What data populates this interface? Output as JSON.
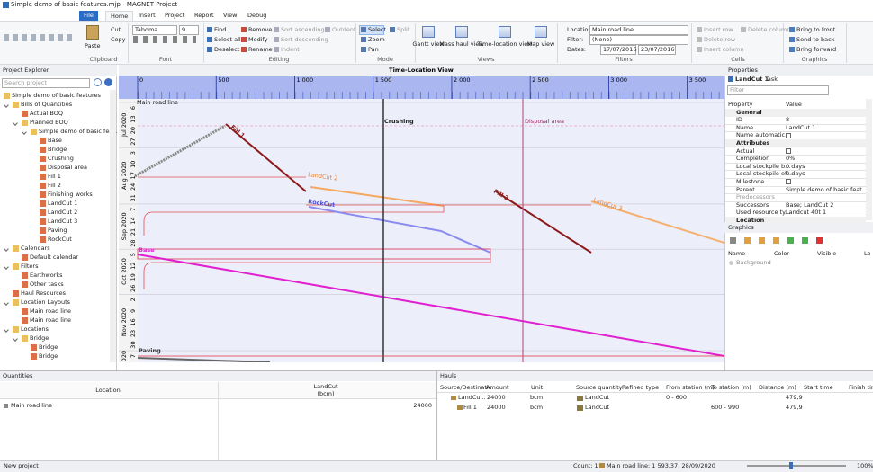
{
  "window": {
    "title": "Simple demo of basic features.mjp - MAGNET Project"
  },
  "ribbon": {
    "tabs": [
      "File",
      "Home",
      "Insert",
      "Project",
      "Report",
      "View",
      "Debug"
    ],
    "clipboard": {
      "label": "Clipboard",
      "items": [
        "Paste",
        "Cut",
        "Copy"
      ]
    },
    "font": {
      "label": "Font",
      "name": "Tahoma",
      "size": "9"
    },
    "editing": {
      "label": "Editing",
      "items": [
        "Find",
        "Select all",
        "Deselect",
        "Remove",
        "Modify",
        "Rename",
        "Sort ascending",
        "Sort descending",
        "Indent",
        "Outdent"
      ]
    },
    "mode": {
      "label": "Mode",
      "items": [
        "Select",
        "Zoom",
        "Pan",
        "Split"
      ]
    },
    "views": {
      "label": "Views",
      "items": [
        "Gantt view",
        "Mass haul view",
        "Time-location view",
        "Map view"
      ]
    },
    "filters": {
      "label": "Filters",
      "location_label": "Location:",
      "location": "Main road line",
      "filter_label": "Filter:",
      "filter": "(None)",
      "dates_label": "Dates:",
      "date_from": "17/07/2016",
      "date_to": "23/07/2016"
    },
    "cells": {
      "label": "Cells",
      "items": [
        "Insert row",
        "Delete row",
        "Insert column",
        "Delete column"
      ]
    },
    "graphics": {
      "label": "Graphics",
      "items": [
        "Bring to front",
        "Send to back",
        "Bring forward"
      ]
    }
  },
  "explorer": {
    "title": "Project Explorer",
    "search": "Search project",
    "tree": [
      {
        "label": "Simple demo of basic features",
        "children": [
          {
            "label": "Bills of Quantities",
            "children": [
              {
                "label": "Actual BOQ"
              },
              {
                "label": "Planned BOQ",
                "children": [
                  {
                    "label": "Simple demo of basic feature",
                    "children": [
                      {
                        "label": "Base"
                      },
                      {
                        "label": "Bridge"
                      },
                      {
                        "label": "Crushing"
                      },
                      {
                        "label": "Disposal area"
                      },
                      {
                        "label": "Fill 1"
                      },
                      {
                        "label": "Fill 2"
                      },
                      {
                        "label": "Finishing works"
                      },
                      {
                        "label": "LandCut 1"
                      },
                      {
                        "label": "LandCut 2"
                      },
                      {
                        "label": "LandCut 3"
                      },
                      {
                        "label": "Paving"
                      },
                      {
                        "label": "RockCut"
                      }
                    ]
                  }
                ]
              }
            ]
          },
          {
            "label": "Calendars",
            "children": [
              {
                "label": "Default calendar"
              }
            ]
          },
          {
            "label": "Filters",
            "children": [
              {
                "label": "Earthworks"
              },
              {
                "label": "Other tasks"
              }
            ]
          },
          {
            "label": "Haul Resources"
          },
          {
            "label": "Location Layouts",
            "children": [
              {
                "label": "Main road line"
              },
              {
                "label": "Main road line"
              }
            ]
          },
          {
            "label": "Locations",
            "children": [
              {
                "label": "Bridge",
                "children": [
                  {
                    "label": "Bridge"
                  },
                  {
                    "label": "Bridge"
                  }
                ]
              }
            ]
          }
        ]
      }
    ]
  },
  "tlv": {
    "title": "Time-Location View",
    "location": "Main road line",
    "xlim": [
      0,
      3800
    ],
    "xticks": [
      0,
      500,
      {
        "value": 1000,
        "label": "1 000"
      },
      {
        "value": 1500,
        "label": "1 500"
      },
      {
        "value": 2000,
        "label": "2 000"
      },
      {
        "value": 2500,
        "label": "2 500"
      },
      {
        "value": 3000,
        "label": "3 000"
      },
      {
        "value": 3500,
        "label": "3 500"
      }
    ],
    "months": [
      {
        "label": "Jul 2020",
        "days": [
          6,
          13,
          20,
          27
        ]
      },
      {
        "label": "Aug 2020",
        "days": [
          3,
          10,
          17,
          24,
          31
        ]
      },
      {
        "label": "Sep 2020",
        "days": [
          7,
          14,
          21,
          28
        ]
      },
      {
        "label": "Oct 2020",
        "days": [
          5,
          12,
          19,
          26
        ]
      },
      {
        "label": "Nov 2020",
        "days": [
          2,
          9,
          16,
          23,
          30
        ]
      },
      {
        "label": "020",
        "days": [
          7
        ]
      }
    ],
    "activities": [
      "Crushing",
      "Disposal area",
      "Fill 1",
      "LandCut 2",
      "RockCut",
      "Fill 2",
      "LandCut 3",
      "Base",
      "Paving"
    ]
  },
  "properties": {
    "title": "Properties",
    "subject": "LandCut 1",
    "subject_type": "Task",
    "filter": "Filter",
    "columns": [
      "Property",
      "Value"
    ],
    "rows": [
      {
        "section": "General"
      },
      {
        "name": "ID",
        "value": "8"
      },
      {
        "name": "Name",
        "value": "LandCut 1"
      },
      {
        "name": "Name automatic...",
        "checked": false
      },
      {
        "section": "Attributes"
      },
      {
        "name": "Actual",
        "checked": false
      },
      {
        "name": "Completion",
        "value": "0%"
      },
      {
        "name": "Local stockpile b...",
        "value": "0 days"
      },
      {
        "name": "Local stockpile ef...",
        "value": "0 days"
      },
      {
        "name": "Milestone",
        "checked": false
      },
      {
        "name": "Parent",
        "value": "Simple demo of basic feat..."
      },
      {
        "name": "Predecessors"
      },
      {
        "name": "Successors",
        "value": "Base; LandCut 2"
      },
      {
        "name": "Used resource ty...",
        "value": "Landcut 40t 1"
      },
      {
        "section": "Location"
      }
    ]
  },
  "graphics": {
    "title": "Graphics",
    "columns": [
      "Name",
      "Color",
      "Visible",
      "Lo"
    ],
    "rows": [
      "Background"
    ]
  },
  "quantities": {
    "title": "Quantities",
    "location": "Location",
    "column": "LandCut",
    "unit": "(bcm)",
    "rows": [
      {
        "location": "Main road line",
        "value": 24000
      }
    ]
  },
  "hauls": {
    "title": "Hauls",
    "columns": [
      "Source/Destinatic",
      "Amount",
      "Unit",
      "Source quantity t",
      "Refined type",
      "From station (m)",
      "To station (m)",
      "Distance (m)",
      "Start time",
      "Finish tim"
    ],
    "rows": [
      {
        "source": "LandCu...",
        "amount": 24000,
        "unit": "bcm",
        "quantity": "LandCut",
        "from": "0 - 600",
        "distance": "479,9"
      },
      {
        "source": "Fill 1",
        "amount": 24000,
        "unit": "bcm",
        "quantity": "LandCut",
        "to": "600 - 990",
        "distance": "479,9"
      }
    ]
  },
  "status": {
    "left": "New project",
    "count": "Count: 1",
    "position": "Main road line: 1 593,37; 28/09/2020",
    "zoom": "100%"
  }
}
